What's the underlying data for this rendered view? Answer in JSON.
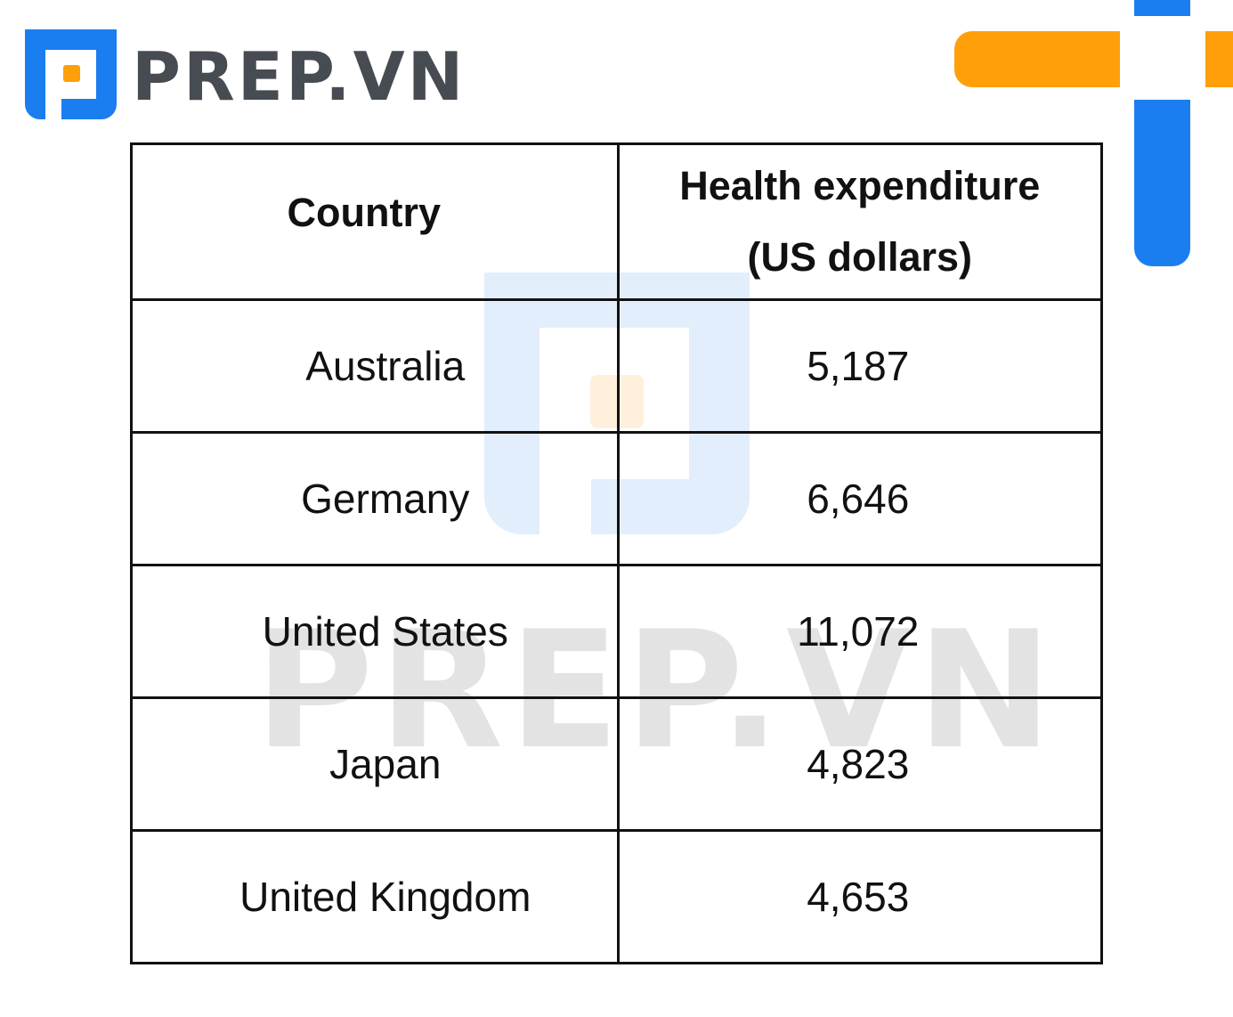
{
  "brand": {
    "name": "PREP.VN",
    "colors": {
      "blue": "#1b7ef0",
      "orange": "#ff9f0a",
      "text": "#474c53",
      "watermark_text": "#e3e3e3"
    }
  },
  "watermark": {
    "text": "PREP.VN"
  },
  "chart_data": {
    "type": "table",
    "columns": [
      "Country",
      "Health expenditure (US dollars)"
    ],
    "header_lines": {
      "country": "Country",
      "value_line1": "Health expenditure",
      "value_line2": "(US dollars)"
    },
    "rows": [
      {
        "country": "Australia",
        "value": "5,187"
      },
      {
        "country": "Germany",
        "value": "6,646"
      },
      {
        "country": "United States",
        "value": "11,072"
      },
      {
        "country": "Japan",
        "value": "4,823"
      },
      {
        "country": "United Kingdom",
        "value": "4,653"
      }
    ],
    "values": [
      5187,
      6646,
      11072,
      4823,
      4653
    ]
  }
}
